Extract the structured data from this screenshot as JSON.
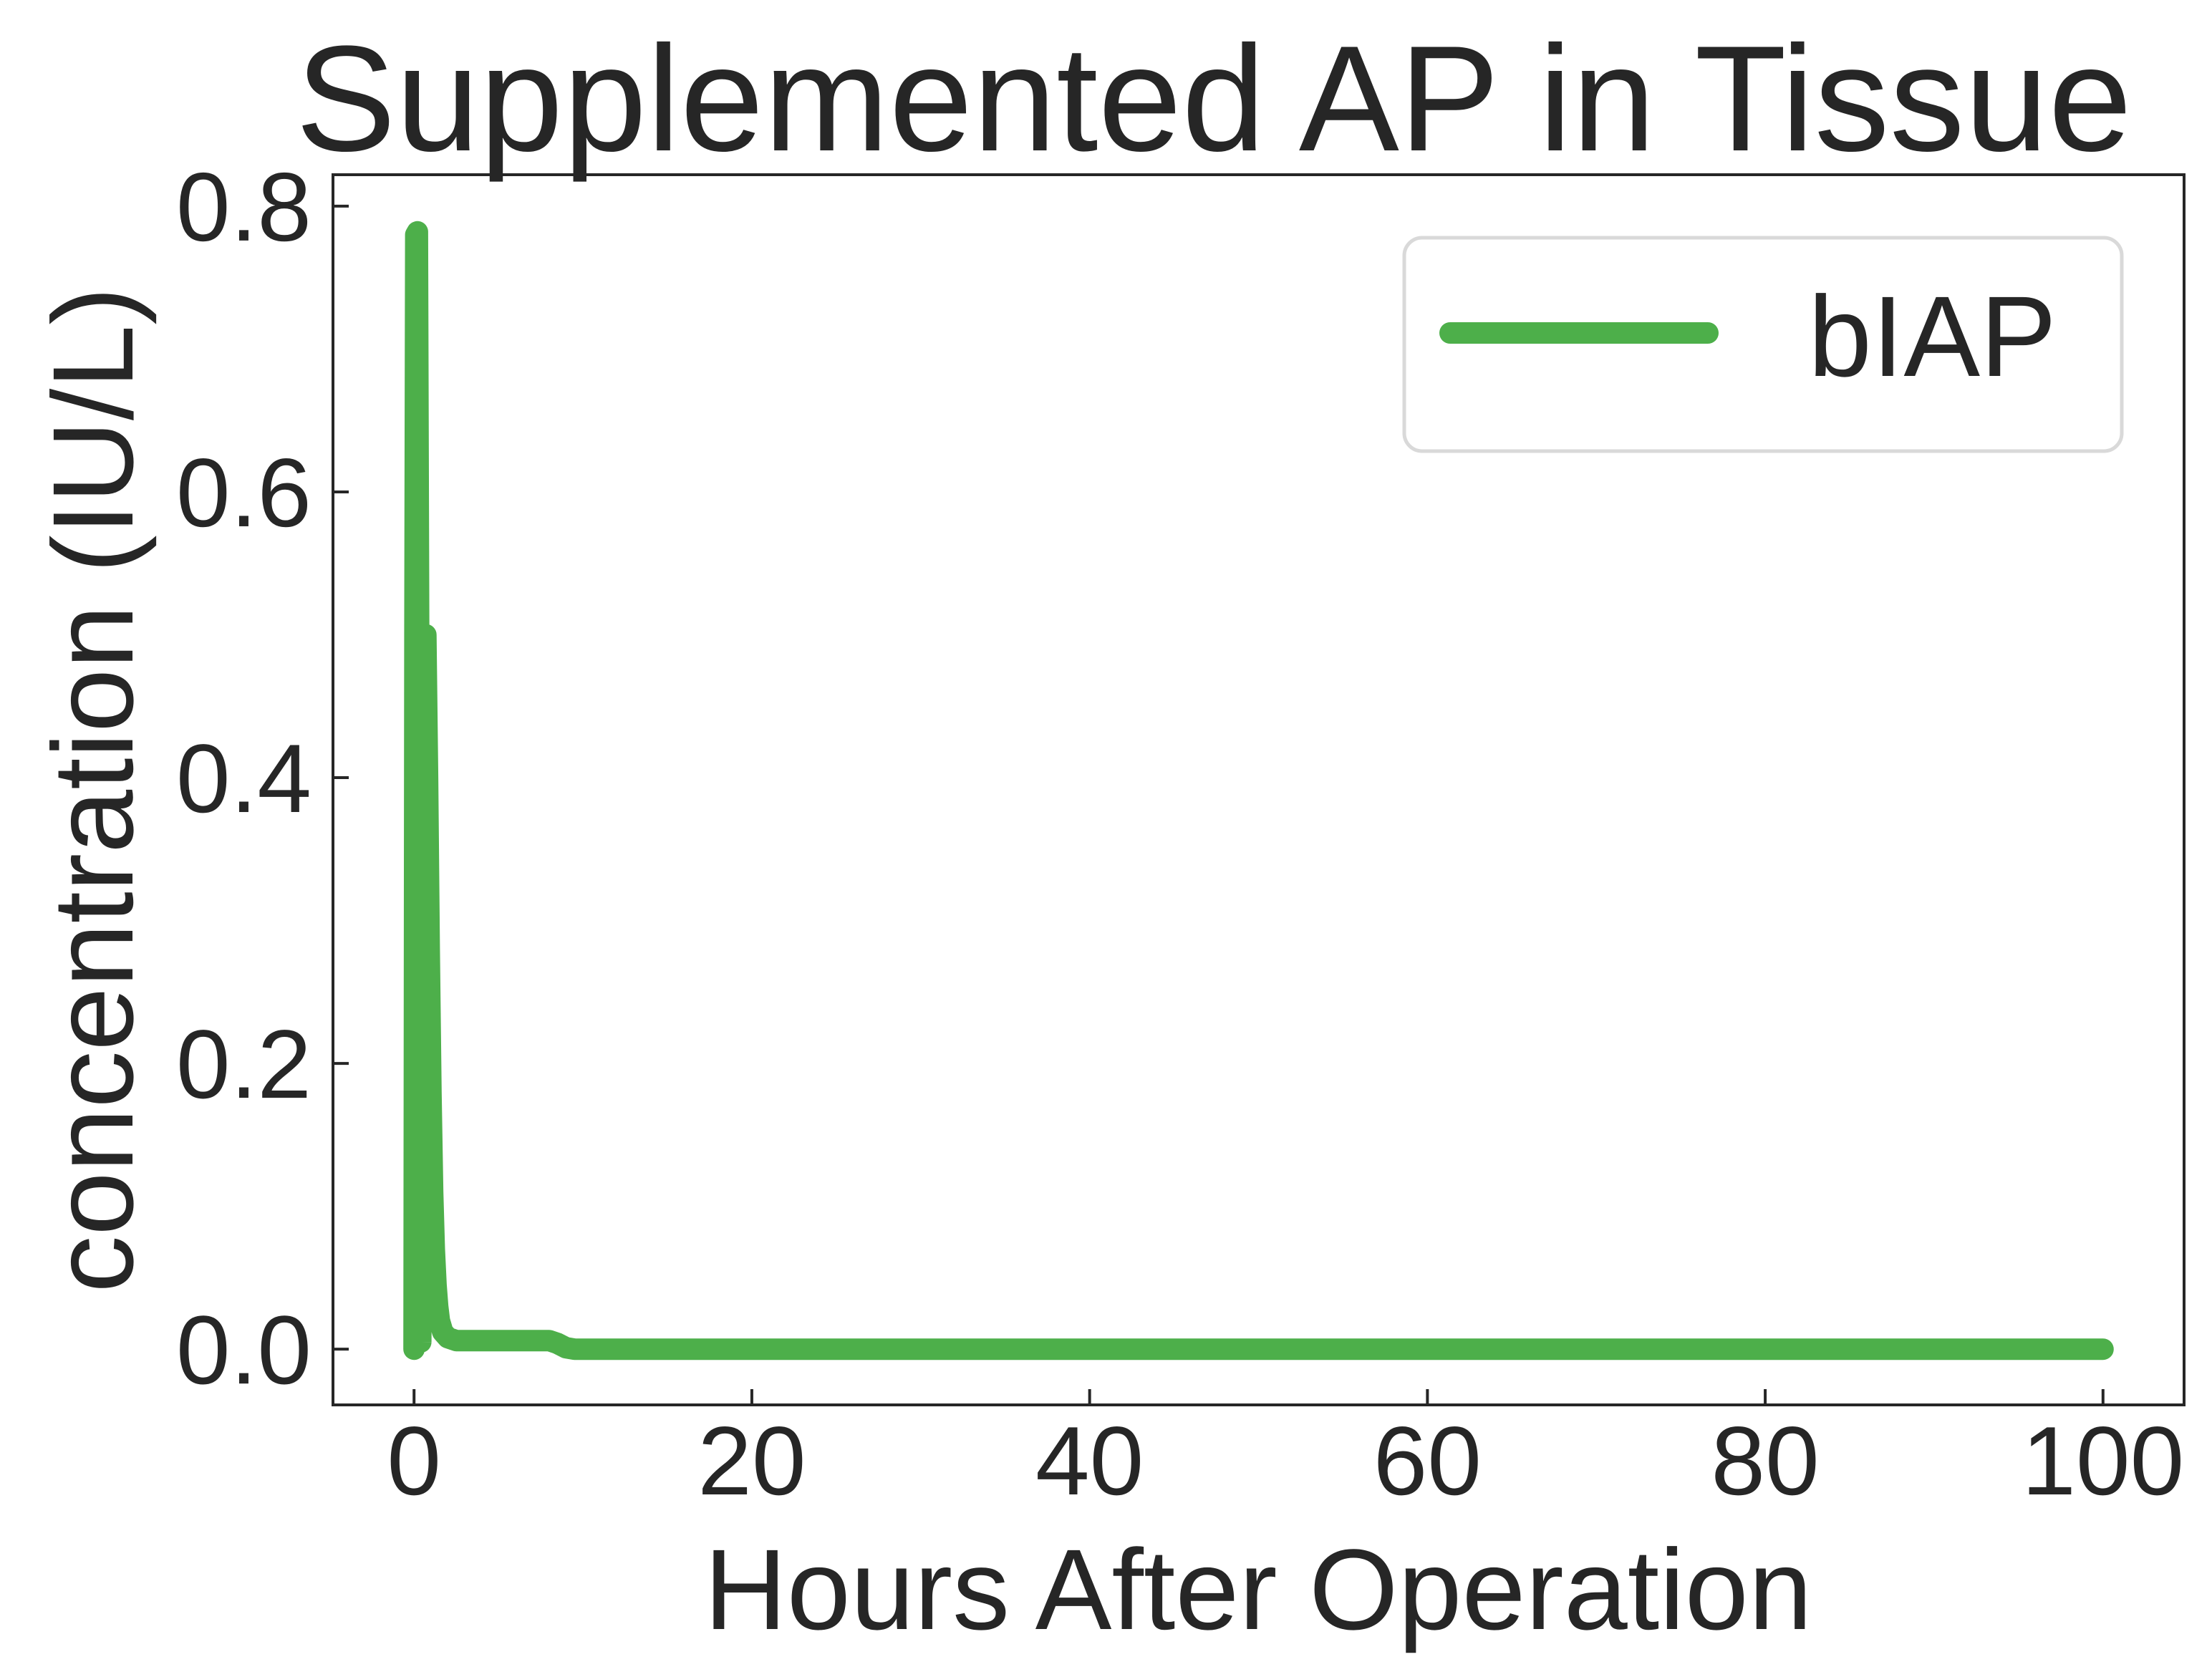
{
  "chart_data": {
    "type": "line",
    "title": "Supplemented AP in Tissue",
    "xlabel": "Hours After Operation",
    "ylabel": "concentration (IU/L)",
    "xlim": [
      -4.8,
      104.8
    ],
    "ylim": [
      -0.039,
      0.822
    ],
    "xticks": [
      0,
      20,
      40,
      60,
      80,
      100
    ],
    "yticks": [
      0.0,
      0.2,
      0.4,
      0.6,
      0.8
    ],
    "xtick_labels": [
      "0",
      "20",
      "40",
      "60",
      "80",
      "100"
    ],
    "ytick_labels": [
      "0.0",
      "0.2",
      "0.4",
      "0.6",
      "0.8"
    ],
    "grid": false,
    "legend": "top-right",
    "series": [
      {
        "name": "bIAP",
        "color": "#4daf4a",
        "x": [
          0,
          0.05,
          0.1,
          0.2,
          0.3,
          0.4,
          0.5,
          0.6,
          0.7,
          0.8,
          0.9,
          1.0,
          1.1,
          1.2,
          1.3,
          1.4,
          1.5,
          1.7,
          2.0,
          2.5,
          3.0,
          5.0,
          8.0,
          8.5,
          9.0,
          9.5,
          10.0,
          20.0,
          40.0,
          60.0,
          80.0,
          100.0
        ],
        "y": [
          0.0,
          0.5,
          0.78,
          0.782,
          0.4,
          0.005,
          0.3,
          0.5,
          0.5,
          0.4,
          0.28,
          0.18,
          0.11,
          0.07,
          0.045,
          0.03,
          0.02,
          0.012,
          0.008,
          0.006,
          0.006,
          0.006,
          0.006,
          0.004,
          0.001,
          0.0,
          0.0,
          0.0,
          0.0,
          0.0,
          0.0,
          0.0
        ]
      }
    ]
  }
}
